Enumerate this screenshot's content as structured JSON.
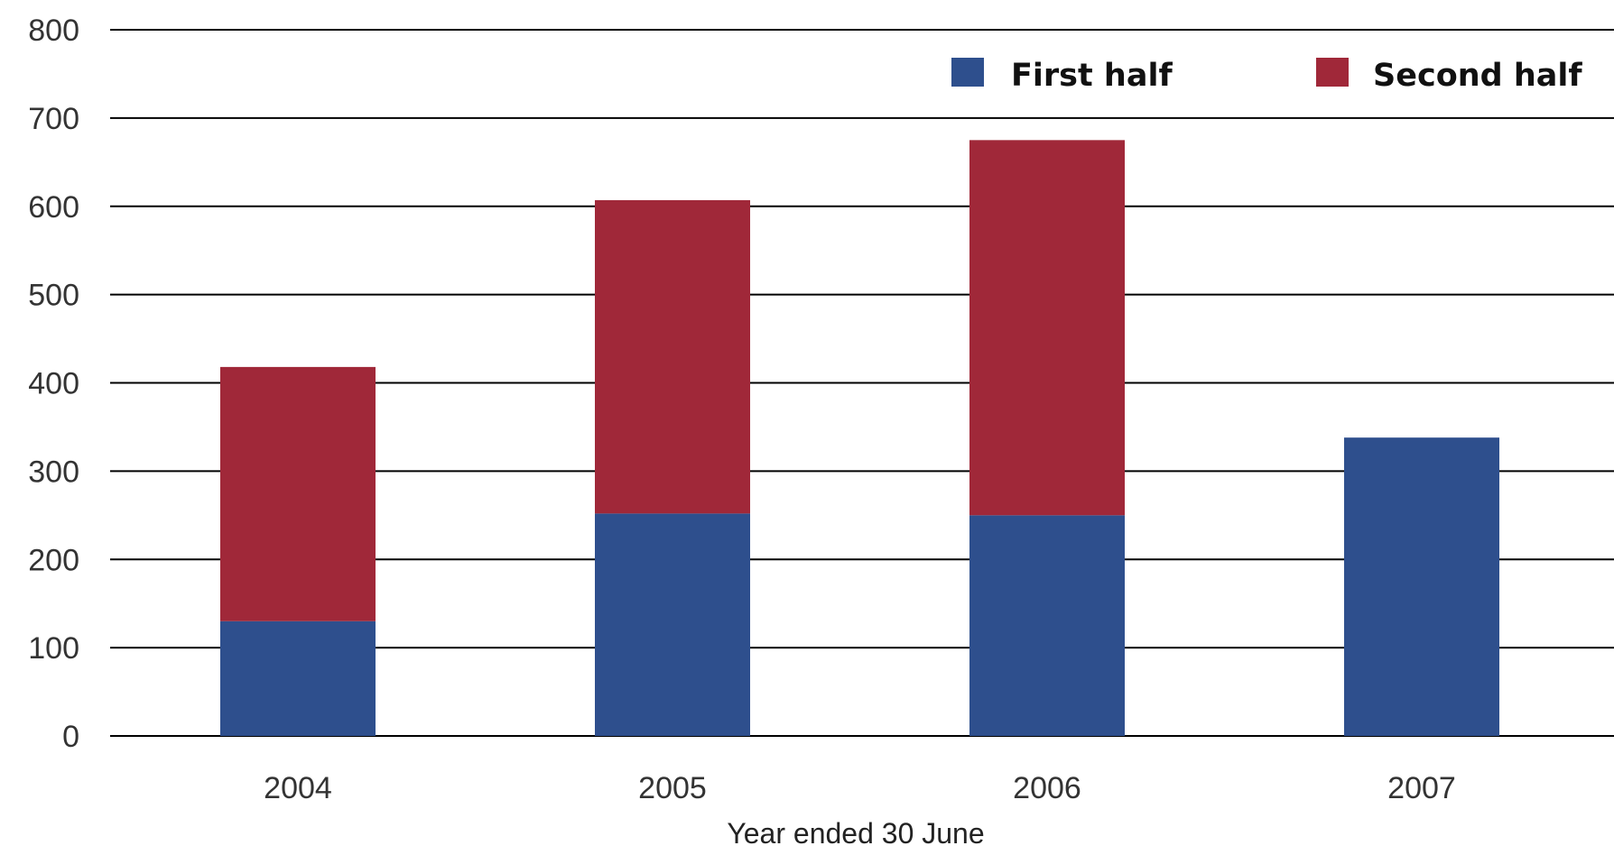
{
  "chart_data": {
    "type": "bar",
    "stacked": true,
    "categories": [
      "2004",
      "2005",
      "2006",
      "2007"
    ],
    "series": [
      {
        "name": "First half",
        "values": [
          130,
          252,
          250,
          338
        ],
        "color": "#2E4F8D"
      },
      {
        "name": "Second half",
        "values": [
          288,
          355,
          425,
          0
        ],
        "color": "#A02839"
      }
    ],
    "title": "",
    "xlabel": "Year ended 30 June",
    "ylabel": "",
    "ylim": [
      0,
      800
    ],
    "yticks": [
      "0",
      "100",
      "200",
      "300",
      "400",
      "500",
      "600",
      "700",
      "800"
    ],
    "grid": true,
    "legend": "top-right"
  }
}
